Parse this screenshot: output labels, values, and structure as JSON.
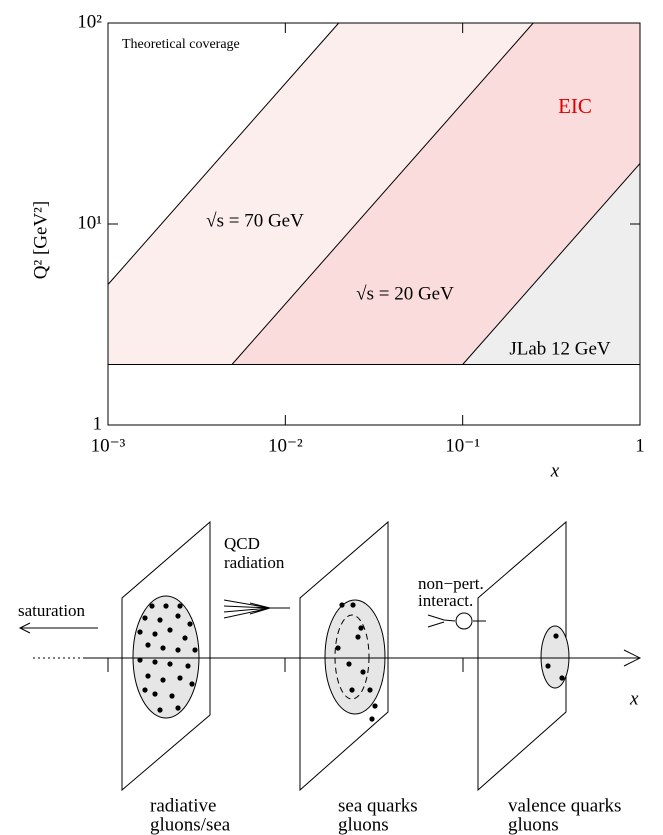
{
  "chart_data": {
    "type": "area",
    "log_x": true,
    "log_y": true,
    "xlabel": "x",
    "ylabel": "Q² [GeV²]",
    "xlim": [
      0.001,
      1
    ],
    "ylim": [
      1,
      100
    ],
    "xticks": [
      {
        "value": 0.001,
        "label": "10⁻³"
      },
      {
        "value": 0.01,
        "label": "10⁻²"
      },
      {
        "value": 0.1,
        "label": "10⁻¹"
      },
      1
    ],
    "yticks": [
      1,
      {
        "value": 10,
        "label": "10¹"
      },
      {
        "value": 100,
        "label": "10²"
      }
    ],
    "series": [
      {
        "name": "√s = 70 GeV",
        "color": "#fdeeee",
        "x": [
          0.001,
          0.02
        ],
        "values": [
          5,
          100
        ]
      },
      {
        "name": "√s = 20 GeV",
        "color": "#fadcdc",
        "x": [
          0.005,
          0.25
        ],
        "values": [
          2,
          100
        ]
      },
      {
        "name": "JLab 12 GeV",
        "color": "#eeeeee",
        "x": [
          0.1,
          1
        ],
        "values": [
          2,
          20
        ]
      },
      {
        "x": [
          0.001,
          1
        ],
        "values": [
          2,
          2
        ]
      }
    ],
    "annotations": [
      {
        "text": "Theoretical coverage",
        "color": "#000000"
      },
      {
        "text": "EIC",
        "color": "#e00000"
      }
    ]
  },
  "diagram": {
    "saturation": "saturation",
    "qcd_radiation": [
      "QCD",
      "radiation"
    ],
    "non_pert": [
      "non−pert.",
      "interact."
    ],
    "axis_label": "x",
    "planes": [
      [
        "radiative",
        "gluons/sea"
      ],
      [
        "sea quarks",
        "gluons"
      ],
      [
        "valence quarks",
        "gluons"
      ]
    ]
  }
}
